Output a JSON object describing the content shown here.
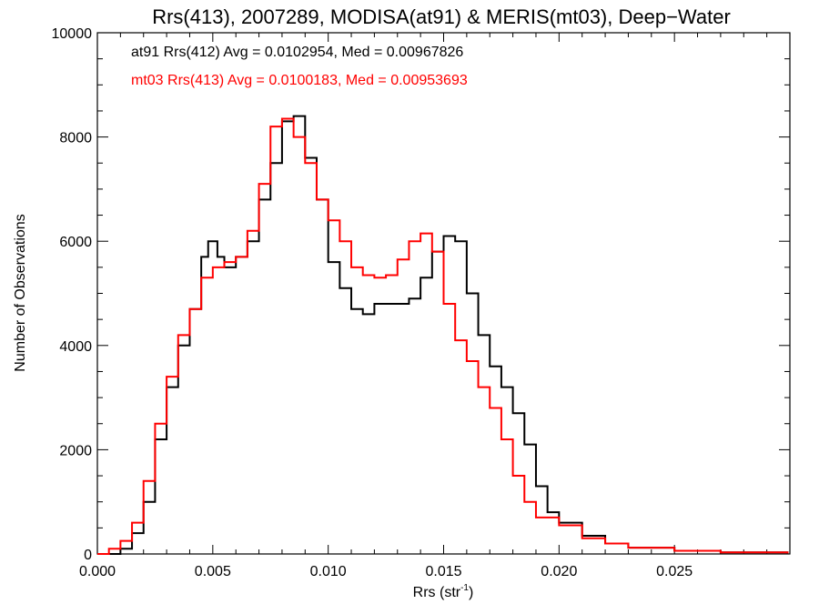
{
  "chart_data": {
    "type": "line",
    "title": "Rrs(413), 2007289, MODISA(at91) & MERIS(mt03), Deep−Water",
    "xlabel": "Rrs (str",
    "xlabel_sup": "-1",
    "xlabel_close": ")",
    "ylabel": "Number of Observations",
    "xlim": [
      0.0,
      0.03
    ],
    "ylim": [
      0,
      10000
    ],
    "x_ticks": [
      0.0,
      0.005,
      0.01,
      0.015,
      0.02,
      0.025
    ],
    "x_tick_labels": [
      "0.000",
      "0.005",
      "0.010",
      "0.015",
      "0.020",
      "0.025"
    ],
    "y_ticks": [
      0,
      2000,
      4000,
      6000,
      8000,
      10000
    ],
    "y_tick_labels": [
      "0",
      "2000",
      "4000",
      "6000",
      "8000",
      "10000"
    ],
    "grid": false,
    "legend_position": "top-left",
    "annotations": [
      {
        "text": "at91 Rrs(412) Avg = 0.0102954, Med = 0.00967826",
        "color": "#000000"
      },
      {
        "text": "mt03 Rrs(413) Avg = 0.0100183, Med = 0.00953693",
        "color": "#ff0000"
      }
    ],
    "series": [
      {
        "color": "#000000",
        "x": [
          0.0,
          0.001,
          0.0015,
          0.002,
          0.0025,
          0.003,
          0.0035,
          0.004,
          0.0045,
          0.0048,
          0.0052,
          0.0055,
          0.006,
          0.0065,
          0.007,
          0.0075,
          0.008,
          0.0085,
          0.009,
          0.0095,
          0.01,
          0.0105,
          0.011,
          0.0115,
          0.012,
          0.0125,
          0.013,
          0.0135,
          0.014,
          0.0145,
          0.015,
          0.0155,
          0.016,
          0.0165,
          0.017,
          0.0175,
          0.018,
          0.0185,
          0.019,
          0.0195,
          0.02,
          0.021,
          0.022,
          0.023,
          0.025,
          0.027,
          0.0299
        ],
        "y": [
          0,
          100,
          400,
          1000,
          2200,
          3200,
          4000,
          4700,
          5700,
          6000,
          5700,
          5500,
          5700,
          6000,
          6800,
          7500,
          8300,
          8400,
          7600,
          6800,
          5600,
          5100,
          4700,
          4600,
          4800,
          4800,
          4800,
          4900,
          5300,
          5800,
          6100,
          6000,
          5000,
          4200,
          3600,
          3200,
          2700,
          2100,
          1300,
          800,
          600,
          350,
          200,
          120,
          60,
          30,
          10
        ]
      },
      {
        "color": "#ff0000",
        "x": [
          0.0,
          0.0005,
          0.001,
          0.0015,
          0.002,
          0.0025,
          0.003,
          0.0035,
          0.004,
          0.0045,
          0.005,
          0.0055,
          0.006,
          0.0065,
          0.007,
          0.0075,
          0.008,
          0.0085,
          0.009,
          0.0095,
          0.01,
          0.0105,
          0.011,
          0.0115,
          0.012,
          0.0125,
          0.013,
          0.0135,
          0.014,
          0.0145,
          0.015,
          0.0155,
          0.016,
          0.0165,
          0.017,
          0.0175,
          0.018,
          0.0185,
          0.019,
          0.02,
          0.021,
          0.022,
          0.023,
          0.025,
          0.027,
          0.0299
        ],
        "y": [
          0,
          100,
          250,
          600,
          1400,
          2500,
          3400,
          4200,
          4700,
          5300,
          5500,
          5600,
          5700,
          6200,
          7100,
          8200,
          8350,
          8000,
          7500,
          6800,
          6400,
          6000,
          5500,
          5350,
          5300,
          5350,
          5650,
          6000,
          6150,
          5800,
          4800,
          4100,
          3700,
          3200,
          2800,
          2200,
          1500,
          1000,
          700,
          550,
          300,
          200,
          120,
          60,
          30,
          10
        ]
      }
    ]
  }
}
